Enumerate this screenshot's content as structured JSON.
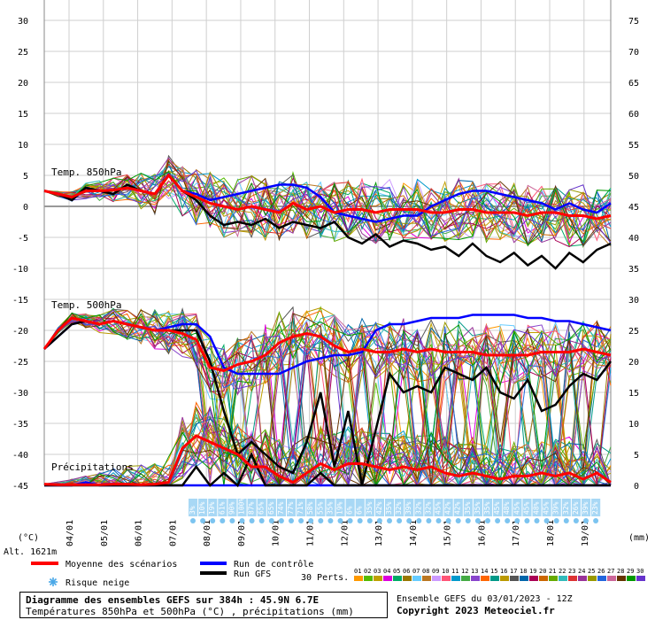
{
  "chart_data": {
    "type": "line",
    "title": "Diagramme des ensembles GEFS sur 384h : 45.9N 6.7E",
    "subtitle": "Températures 850hPa et 500hPa (°C) , précipitations (mm)",
    "run_info": "Ensemble GEFS du 03/01/2023 - 12Z",
    "copyright": "Copyright 2023 Meteociel.fr",
    "left_axis_unit": "(°C)",
    "right_axis_unit": "(mm)",
    "altitude": "Alt. 1621m",
    "left_ticks": [
      30,
      25,
      20,
      15,
      10,
      5,
      0,
      -5,
      -10,
      -15,
      -20,
      -25,
      -30,
      -35,
      -40,
      -45
    ],
    "right_ticks": [
      75,
      70,
      65,
      60,
      55,
      50,
      45,
      40,
      35,
      30,
      25,
      20,
      15,
      10,
      5,
      0
    ],
    "ylim_temp": [
      -45,
      30
    ],
    "ylim_precip_mm": [
      0,
      75
    ],
    "x_dates": [
      "04/01",
      "05/01",
      "06/01",
      "07/01",
      "08/01",
      "09/01",
      "10/01",
      "11/01",
      "12/01",
      "13/01",
      "14/01",
      "15/01",
      "16/01",
      "17/01",
      "18/01",
      "19/01"
    ],
    "panel_labels": [
      "Temp. 850hPa",
      "Temp. 500hPa",
      "Précipitations"
    ],
    "snow_risk_pct": [
      "3%",
      "10%",
      "19%",
      "61%",
      "90%",
      "100%",
      "87%",
      "65%",
      "65%",
      "74%",
      "77%",
      "71%",
      "58%",
      "55%",
      "35%",
      "19%",
      "6%",
      "6%",
      "35%",
      "42%",
      "35%",
      "32%",
      "39%",
      "32%",
      "32%",
      "45%",
      "42%",
      "42%",
      "35%",
      "35%",
      "35%",
      "45%",
      "48%",
      "45%",
      "45%",
      "48%",
      "45%",
      "39%",
      "32%",
      "26%",
      "39%",
      "23%"
    ],
    "series": [
      {
        "name": "Moyenne des scénarios",
        "color": "#ff0000",
        "t850": [
          2.5,
          2.0,
          1.5,
          2.5,
          2.5,
          2.6,
          3.0,
          2.5,
          2.0,
          5.0,
          2.5,
          1.5,
          0.5,
          0.0,
          -0.5,
          0.0,
          -0.5,
          -1.0,
          0.5,
          -0.5,
          0.0,
          -1.0,
          -0.5,
          -0.5,
          -1.0,
          -0.5,
          -0.5,
          -0.5,
          -1.0,
          -1.0,
          -0.5,
          -0.5,
          -1.0,
          -1.0,
          -1.0,
          -1.5,
          -1.0,
          -1.0,
          -1.5,
          -1.5,
          -2.0,
          -1.5
        ],
        "t500": [
          -23,
          -20,
          -18,
          -18.5,
          -19,
          -18.5,
          -19,
          -19.5,
          -20,
          -20,
          -20.5,
          -21.5,
          -26,
          -26.5,
          -25.5,
          -25,
          -24,
          -22,
          -21,
          -20.5,
          -21,
          -22.5,
          -23.5,
          -23,
          -23.5,
          -23.5,
          -23,
          -23.5,
          -23,
          -23.5,
          -23.5,
          -23.5,
          -24,
          -24,
          -24,
          -24,
          -23.5,
          -23.5,
          -23.5,
          -23,
          -23.5,
          -24
        ],
        "precip_mm": [
          0.2,
          0.1,
          0.1,
          0.1,
          0.1,
          0.2,
          0.2,
          0.1,
          0.2,
          0.5,
          6,
          8,
          7,
          6,
          5,
          3,
          3,
          1.5,
          0.5,
          2,
          3.5,
          2.5,
          3.5,
          3.5,
          3,
          2.5,
          3,
          2.5,
          3,
          2,
          1.5,
          2,
          1.5,
          1,
          1.5,
          1.5,
          2,
          1.5,
          2,
          1,
          2,
          0.5
        ]
      },
      {
        "name": "Run de contrôle",
        "color": "#0000ff",
        "t850": [
          2.5,
          2.0,
          1.0,
          3.0,
          2.5,
          2.0,
          3.5,
          2.5,
          2.0,
          5.0,
          2.5,
          2.0,
          1.0,
          1.5,
          2.0,
          2.5,
          3.0,
          3.5,
          3.5,
          3.0,
          1.5,
          -1.0,
          -1.5,
          -2.0,
          -2.5,
          -2.0,
          -1.5,
          -1.5,
          0.0,
          1.0,
          2.0,
          2.5,
          2.5,
          2.0,
          1.5,
          1.0,
          0.5,
          -0.5,
          0.5,
          -0.5,
          -1.0,
          0.5
        ],
        "t500": [
          -23,
          -21,
          -19,
          -18.5,
          -19,
          -18.5,
          -19,
          -19.5,
          -20,
          -19.5,
          -19,
          -19,
          -21,
          -26,
          -27,
          -27,
          -27,
          -27,
          -26,
          -25,
          -24.5,
          -24,
          -24,
          -23.5,
          -20,
          -19,
          -19,
          -18.5,
          -18,
          -18,
          -18,
          -17.5,
          -17.5,
          -17.5,
          -17.5,
          -18,
          -18,
          -18.5,
          -18.5,
          -19,
          -19.5,
          -20
        ],
        "precip_mm": [
          0,
          0,
          0,
          0.5,
          0,
          0,
          0,
          0,
          0,
          0,
          0,
          0,
          0,
          0,
          0,
          0,
          0,
          0,
          0,
          0,
          0,
          0,
          0,
          0,
          0,
          0,
          0,
          0,
          0,
          0,
          0,
          0,
          0,
          0,
          0,
          0,
          0,
          0,
          0,
          0,
          0,
          0
        ]
      },
      {
        "name": "Run GFS",
        "color": "#000000",
        "t850": [
          2.5,
          2.0,
          1.0,
          3.0,
          2.5,
          2.0,
          3.5,
          2.5,
          2.0,
          5.0,
          2.5,
          1.0,
          -1.5,
          -3.0,
          -2.5,
          -3.0,
          -2.0,
          -3.5,
          -2.5,
          -3.0,
          -3.5,
          -2.5,
          -5.0,
          -6.0,
          -4.5,
          -6.5,
          -5.5,
          -6.0,
          -7.0,
          -6.5,
          -8.0,
          -6.0,
          -8.0,
          -9.0,
          -7.5,
          -9.5,
          -8.0,
          -10.0,
          -7.5,
          -9.0,
          -7.0,
          -6.0
        ],
        "t500": [
          -23,
          -21,
          -19,
          -18.5,
          -19,
          -18.5,
          -19,
          -19.5,
          -20,
          -20,
          -20,
          -20,
          -25,
          -33,
          -40,
          -38,
          -40,
          -42,
          -43,
          -38,
          -30,
          -42,
          -33,
          -45,
          -36,
          -27,
          -30,
          -29,
          -30,
          -26,
          -27,
          -28,
          -26,
          -30,
          -31,
          -28,
          -33,
          -32,
          -29,
          -27,
          -28,
          -25
        ],
        "precip_mm": [
          0,
          0,
          0,
          0,
          0,
          0,
          0,
          0,
          0,
          0,
          0,
          3,
          0,
          2,
          0,
          5,
          0,
          0,
          0,
          0,
          2,
          0,
          0,
          0,
          0,
          0,
          0,
          0,
          0,
          0,
          0,
          0,
          0,
          0,
          0,
          0,
          0,
          0,
          0,
          0,
          0,
          0
        ]
      }
    ],
    "perturbation_count": 30,
    "perturbation_colors": [
      "#ff9900",
      "#55bb00",
      "#c0a000",
      "#dd00dd",
      "#00aa66",
      "#997700",
      "#66ccff",
      "#bb7722",
      "#cc99ff",
      "#ff5577",
      "#0099cc",
      "#44aa44",
      "#8844cc",
      "#ff6600",
      "#009988",
      "#bb9900",
      "#555555",
      "#0066aa",
      "#aa0055",
      "#cc6600",
      "#66aa00",
      "#33bbbb",
      "#dd3333",
      "#993399",
      "#999900",
      "#2266dd",
      "#cc6699",
      "#663300",
      "#009900",
      "#6633cc"
    ]
  },
  "legend": {
    "mean_label": "Moyenne des scénarios",
    "control_label": "Run de contrôle",
    "gfs_label": "Run GFS",
    "snow_label": "Risque neige",
    "perts_label": "30 Perts.",
    "perts_numbers": [
      "01",
      "02",
      "03",
      "04",
      "05",
      "06",
      "07",
      "08",
      "09",
      "10",
      "11",
      "12",
      "13",
      "14",
      "15",
      "16",
      "17",
      "18",
      "19",
      "20",
      "21",
      "22",
      "23",
      "24",
      "25",
      "26",
      "27",
      "28",
      "29",
      "30"
    ]
  }
}
